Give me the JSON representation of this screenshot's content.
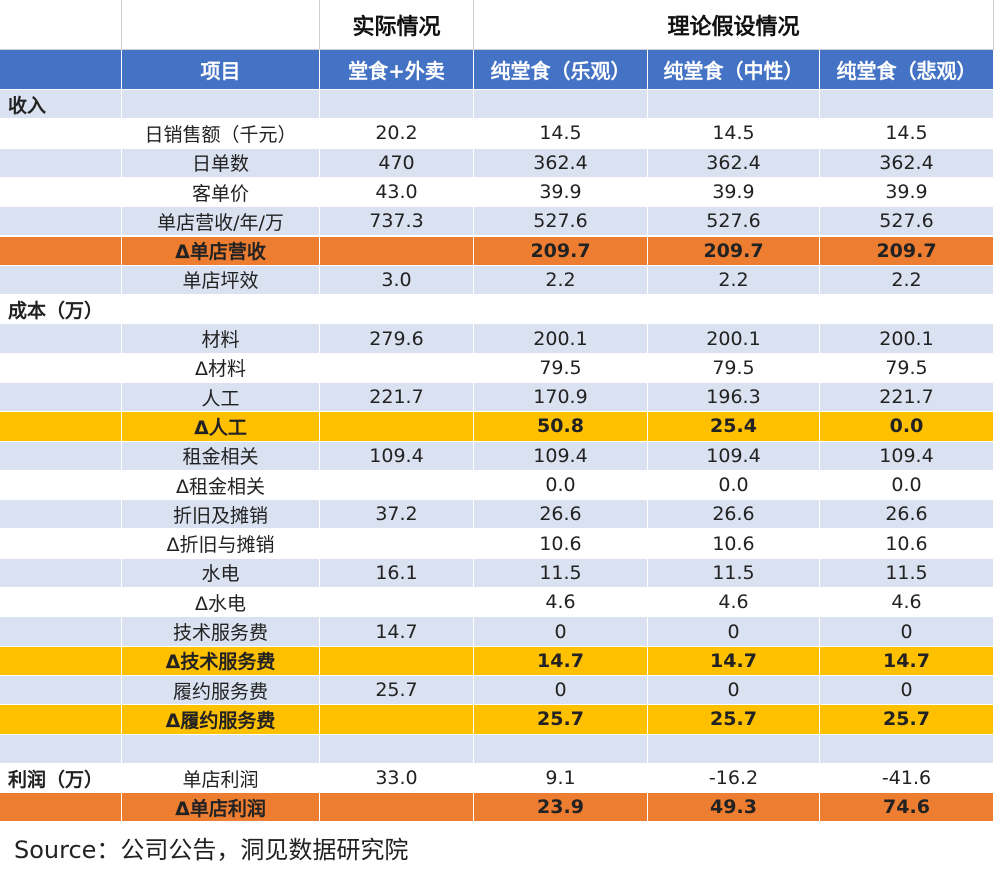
{
  "table": {
    "groups": [
      null,
      null,
      "实际情况",
      "理论假设情况"
    ],
    "header": [
      "项目",
      "堂食+外卖",
      "纯堂食（乐观）",
      "纯堂食（中性）",
      "纯堂食（悲观）"
    ],
    "rows": [
      {
        "fill": "#dae1f0",
        "cells": [
          "收入",
          null,
          null,
          null,
          null,
          null
        ]
      },
      {
        "fill": "#ffffff",
        "cells": [
          null,
          "日销售额（千元）",
          "20.2",
          "14.5",
          "14.5",
          "14.5"
        ]
      },
      {
        "fill": "#dae1f0",
        "cells": [
          null,
          "日单数",
          "470",
          "362.4",
          "362.4",
          "362.4"
        ]
      },
      {
        "fill": "#ffffff",
        "cells": [
          null,
          "客单价",
          "43.0",
          "39.9",
          "39.9",
          "39.9"
        ]
      },
      {
        "fill": "#dae1f0",
        "cells": [
          null,
          "单店营收/年/万",
          "737.3",
          "527.6",
          "527.6",
          "527.6"
        ]
      },
      {
        "fill": "#ed7d31",
        "cells": [
          null,
          "Δ单店营收",
          null,
          "209.7",
          "209.7",
          "209.7"
        ]
      },
      {
        "fill": "#dae1f0",
        "cells": [
          null,
          "单店坪效",
          "3.0",
          "2.2",
          "2.2",
          "2.2"
        ]
      },
      {
        "fill": "#ffffff",
        "cells": [
          "成本（万）",
          null,
          null,
          null,
          null,
          null
        ]
      },
      {
        "fill": "#dae1f0",
        "cells": [
          null,
          "材料",
          "279.6",
          "200.1",
          "200.1",
          "200.1"
        ]
      },
      {
        "fill": "#ffffff",
        "cells": [
          null,
          "Δ材料",
          null,
          "79.5",
          "79.5",
          "79.5"
        ]
      },
      {
        "fill": "#dae1f0",
        "cells": [
          null,
          "人工",
          "221.7",
          "170.9",
          "196.3",
          "221.7"
        ]
      },
      {
        "fill": "#ffc000",
        "cells": [
          null,
          "Δ人工",
          null,
          "50.8",
          "25.4",
          "0.0"
        ]
      },
      {
        "fill": "#dae1f0",
        "cells": [
          null,
          "租金相关",
          "109.4",
          "109.4",
          "109.4",
          "109.4"
        ]
      },
      {
        "fill": "#ffffff",
        "cells": [
          null,
          "Δ租金相关",
          null,
          "0.0",
          "0.0",
          "0.0"
        ]
      },
      {
        "fill": "#dae1f0",
        "cells": [
          null,
          "折旧及摊销",
          "37.2",
          "26.6",
          "26.6",
          "26.6"
        ]
      },
      {
        "fill": "#ffffff",
        "cells": [
          null,
          "Δ折旧与摊销",
          null,
          "10.6",
          "10.6",
          "10.6"
        ]
      },
      {
        "fill": "#dae1f0",
        "cells": [
          null,
          "水电",
          "16.1",
          "11.5",
          "11.5",
          "11.5"
        ]
      },
      {
        "fill": "#ffffff",
        "cells": [
          null,
          "Δ水电",
          null,
          "4.6",
          "4.6",
          "4.6"
        ]
      },
      {
        "fill": "#dae1f0",
        "cells": [
          null,
          "技术服务费",
          "14.7",
          "0",
          "0",
          "0"
        ]
      },
      {
        "fill": "#ffc000",
        "cells": [
          null,
          "Δ技术服务费",
          null,
          "14.7",
          "14.7",
          "14.7"
        ]
      },
      {
        "fill": "#dae1f0",
        "cells": [
          null,
          "履约服务费",
          "25.7",
          "0",
          "0",
          "0"
        ]
      },
      {
        "fill": "#ffc000",
        "cells": [
          null,
          "Δ履约服务费",
          null,
          "25.7",
          "25.7",
          "25.7"
        ]
      },
      {
        "fill": "#dae1f0",
        "cells": [
          null,
          null,
          null,
          null,
          null,
          null
        ]
      },
      {
        "fill": "#ffffff",
        "cells": [
          "利润（万）",
          "单店利润",
          "33.0",
          "9.1",
          "-16.2",
          "-41.6"
        ]
      },
      {
        "fill": "#ed7d31",
        "cells": [
          null,
          "Δ单店利润",
          null,
          "23.9",
          "49.3",
          "74.6"
        ]
      }
    ]
  },
  "source": "Source：公司公告，洞见数据研究院"
}
